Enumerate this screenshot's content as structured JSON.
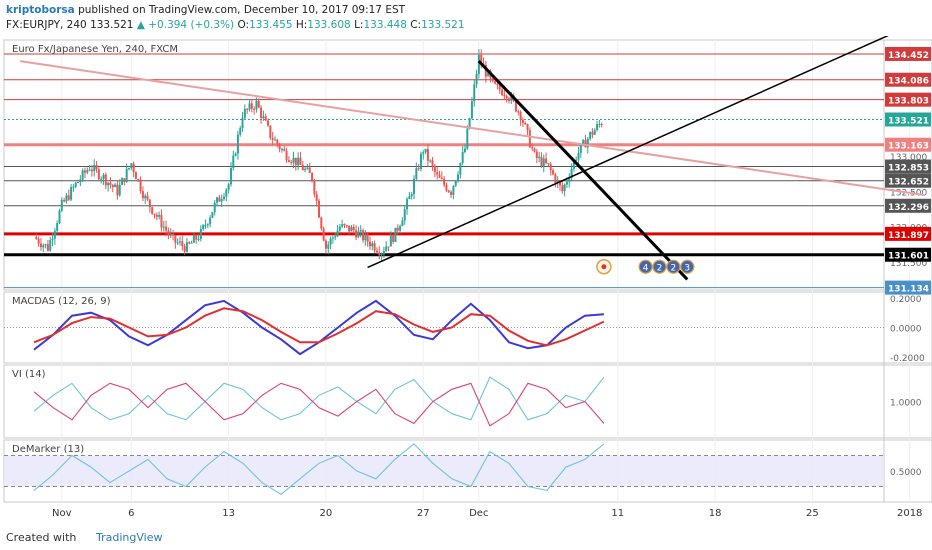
{
  "header": {
    "author": "kriptoborsa",
    "published": "published on TradingView.com, December 10, 2017 09:17 EST",
    "symbol_line_1": "FX:EURJPY, 240",
    "last": "133.521",
    "change": "+0.394 (+0.3%)",
    "open_label": "O:",
    "open": "133.455",
    "high_label": "H:",
    "high": "133.608",
    "low_label": "L:",
    "low": "133.448",
    "close_label": "C:",
    "close": "133.521"
  },
  "footer": {
    "created_with": "Created with",
    "brand": "TradingView"
  },
  "chart_data": [
    {
      "type": "candlestick",
      "title": "Euro Fx/Japanese Yen, 240, FXCM",
      "ylim": [
        131.1,
        134.65
      ],
      "x_tick_labels": [
        "Nov",
        "6",
        "13",
        "20",
        "27",
        "Dec",
        "11",
        "18",
        "25",
        "2018"
      ],
      "price_axis_labels": [
        {
          "value": 133.0,
          "text": "133.000"
        },
        {
          "value": 132.5,
          "text": "132.500"
        },
        {
          "value": 132.0,
          "text": "132.000"
        },
        {
          "value": 131.5,
          "text": "131.500"
        }
      ],
      "horizontal_levels": [
        {
          "value": 134.452,
          "text": "134.452",
          "color": "#d23b3b",
          "width": 1
        },
        {
          "value": 134.086,
          "text": "134.086",
          "color": "#d23b3b",
          "width": 1
        },
        {
          "value": 133.803,
          "text": "133.803",
          "color": "#d23b3b",
          "width": 1
        },
        {
          "value": 133.521,
          "text": "133.521",
          "color": "#26a69a",
          "width": 1,
          "style": "dotted"
        },
        {
          "value": 133.163,
          "text": "133.163",
          "color": "#f08080",
          "width": 3
        },
        {
          "value": 132.853,
          "text": "132.853",
          "color": "#555555",
          "width": 1
        },
        {
          "value": 132.652,
          "text": "132.652",
          "color": "#555555",
          "width": 1
        },
        {
          "value": 132.296,
          "text": "132.296",
          "color": "#555555",
          "width": 1
        },
        {
          "value": 131.897,
          "text": "131.897",
          "color": "#e00000",
          "width": 3
        },
        {
          "value": 131.601,
          "text": "131.601",
          "color": "#000000",
          "width": 3
        },
        {
          "value": 131.134,
          "text": "131.134",
          "color": "#4a90c8",
          "width": 1
        }
      ],
      "trend_lines": [
        {
          "from": [
            "Oct 29",
            134.35
          ],
          "to": [
            "Jan 2",
            132.45
          ],
          "color": "#e8a0a0",
          "width": 2
        },
        {
          "from": [
            "Nov 23",
            131.42
          ],
          "to": [
            "Jan 1",
            134.85
          ],
          "color": "#000000",
          "width": 1.5
        },
        {
          "from": [
            "Dec 1",
            134.35
          ],
          "to": [
            "Dec 16",
            131.25
          ],
          "color": "#000000",
          "width": 3
        }
      ],
      "close_path": [
        [
          "Oct 30",
          131.85
        ],
        [
          "Oct 31",
          131.7
        ],
        [
          "Nov 1",
          132.3
        ],
        [
          "Nov 2",
          132.6
        ],
        [
          "Nov 3",
          132.85
        ],
        [
          "Nov 4",
          132.7
        ],
        [
          "Nov 5",
          132.5
        ],
        [
          "Nov 6",
          132.9
        ],
        [
          "Nov 7",
          132.4
        ],
        [
          "Nov 8",
          132.1
        ],
        [
          "Nov 9",
          131.8
        ],
        [
          "Nov 10",
          131.7
        ],
        [
          "Nov 11",
          131.9
        ],
        [
          "Nov 12",
          132.3
        ],
        [
          "Nov 13",
          132.6
        ],
        [
          "Nov 14",
          133.6
        ],
        [
          "Nov 15",
          133.75
        ],
        [
          "Nov 16",
          133.3
        ],
        [
          "Nov 17",
          133.05
        ],
        [
          "Nov 18",
          132.9
        ],
        [
          "Nov 19",
          132.7
        ],
        [
          "Nov 20",
          131.7
        ],
        [
          "Nov 21",
          132.0
        ],
        [
          "Nov 22",
          131.95
        ],
        [
          "Nov 23",
          131.8
        ],
        [
          "Nov 24",
          131.65
        ],
        [
          "Nov 25",
          131.9
        ],
        [
          "Nov 26",
          132.4
        ],
        [
          "Nov 27",
          133.1
        ],
        [
          "Nov 28",
          132.7
        ],
        [
          "Nov 29",
          132.5
        ],
        [
          "Nov 30",
          133.1
        ],
        [
          "Dec 1",
          134.4
        ],
        [
          "Dec 2",
          134.0
        ],
        [
          "Dec 3",
          133.9
        ],
        [
          "Dec 4",
          133.6
        ],
        [
          "Dec 5",
          133.0
        ],
        [
          "Dec 6",
          132.85
        ],
        [
          "Dec 7",
          132.5
        ],
        [
          "Dec 8",
          133.0
        ],
        [
          "Dec 9",
          133.3
        ],
        [
          "Dec 10",
          133.52
        ]
      ],
      "markers": [
        {
          "x": "Dec 10",
          "y": 131.43,
          "text": ""
        },
        {
          "x": "Dec 13",
          "y": 131.43,
          "text": "4"
        },
        {
          "x": "Dec 14",
          "y": 131.43,
          "text": "2"
        },
        {
          "x": "Dec 15",
          "y": 131.43,
          "text": "2"
        },
        {
          "x": "Dec 16",
          "y": 131.43,
          "text": "3"
        }
      ]
    },
    {
      "type": "line",
      "title": "MACDAS (12, 26, 9)",
      "ylim": [
        -0.24,
        0.24
      ],
      "y_tick_labels": [
        "0.2000",
        "0.0000",
        "-0.2000"
      ],
      "y_tick_values": [
        0.2,
        0.0,
        -0.2
      ],
      "series": [
        {
          "color": "#3a3ad8",
          "values": [
            -0.15,
            -0.05,
            0.08,
            0.1,
            0.05,
            -0.06,
            -0.12,
            -0.05,
            0.05,
            0.15,
            0.18,
            0.1,
            0.0,
            -0.08,
            -0.18,
            -0.1,
            0.0,
            0.1,
            0.18,
            0.08,
            -0.05,
            -0.08,
            0.05,
            0.16,
            0.05,
            -0.1,
            -0.14,
            -0.12,
            0.0,
            0.08,
            0.09
          ]
        },
        {
          "color": "#e03030",
          "values": [
            -0.1,
            -0.05,
            0.03,
            0.07,
            0.06,
            0.0,
            -0.06,
            -0.05,
            0.0,
            0.08,
            0.13,
            0.11,
            0.05,
            -0.03,
            -0.1,
            -0.1,
            -0.04,
            0.03,
            0.11,
            0.09,
            0.02,
            -0.03,
            0.0,
            0.09,
            0.08,
            -0.02,
            -0.09,
            -0.12,
            -0.08,
            -0.02,
            0.04
          ]
        }
      ]
    },
    {
      "type": "line",
      "title": "VI (14)",
      "ylim": [
        0.7,
        1.3
      ],
      "y_tick_labels": [
        "1.0000"
      ],
      "y_tick_values": [
        1.0
      ],
      "series": [
        {
          "color": "#6cc4e0",
          "values": [
            0.92,
            1.05,
            1.15,
            0.95,
            0.85,
            0.9,
            1.05,
            0.9,
            0.85,
            1.0,
            1.15,
            1.1,
            0.95,
            0.85,
            0.9,
            1.05,
            1.12,
            1.0,
            0.9,
            1.1,
            1.18,
            1.0,
            0.9,
            0.85,
            1.2,
            1.1,
            0.85,
            0.9,
            1.05,
            1.0,
            1.2
          ]
        },
        {
          "color": "#e0407a",
          "values": [
            1.08,
            0.95,
            0.85,
            1.05,
            1.15,
            1.1,
            0.95,
            1.1,
            1.15,
            1.0,
            0.85,
            0.9,
            1.05,
            1.15,
            1.1,
            0.95,
            0.88,
            1.0,
            1.1,
            0.9,
            0.82,
            1.0,
            1.1,
            1.15,
            0.8,
            0.9,
            1.15,
            1.1,
            0.95,
            1.0,
            0.82
          ]
        }
      ]
    },
    {
      "type": "line",
      "title": "DeMarker (13)",
      "ylim": [
        0.1,
        0.9
      ],
      "y_tick_labels": [
        "0.5000"
      ],
      "y_tick_values": [
        0.5
      ],
      "band": [
        0.3,
        0.7
      ],
      "series": [
        {
          "color": "#6cc4e0",
          "values": [
            0.25,
            0.45,
            0.7,
            0.55,
            0.35,
            0.5,
            0.65,
            0.4,
            0.3,
            0.55,
            0.75,
            0.6,
            0.35,
            0.2,
            0.4,
            0.6,
            0.7,
            0.5,
            0.4,
            0.65,
            0.85,
            0.6,
            0.4,
            0.3,
            0.75,
            0.6,
            0.3,
            0.25,
            0.55,
            0.65,
            0.85
          ]
        }
      ]
    }
  ]
}
